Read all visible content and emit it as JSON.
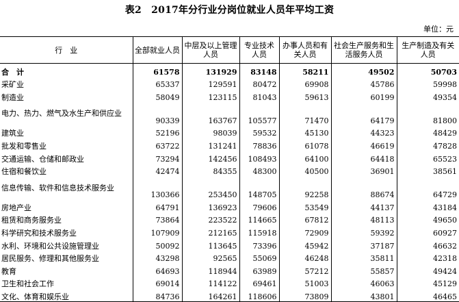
{
  "title": "表2　2017年分行业分岗位就业人员年平均工资",
  "unit": "单位：元",
  "table": {
    "headers": [
      "行　业",
      "全部就业人员",
      "中层及以上管理人员",
      "专业技术人员",
      "办事人员和有关人员",
      "社会生产服务和生活服务人员",
      "生产制造及有关人员"
    ],
    "rows": [
      [
        "合　计",
        "61578",
        "131929",
        "83148",
        "58211",
        "49502",
        "50703"
      ],
      [
        "采矿业",
        "65337",
        "129591",
        "80472",
        "69908",
        "45786",
        "59998"
      ],
      [
        "制造业",
        "58049",
        "123115",
        "81043",
        "59613",
        "60199",
        "49354"
      ],
      [
        "电力、热力、燃气及水生产和供应业",
        "90339",
        "163767",
        "105577",
        "71470",
        "64179",
        "81800"
      ],
      [
        "建筑业",
        "52196",
        "98039",
        "59532",
        "45130",
        "44323",
        "48429"
      ],
      [
        "批发和零售业",
        "63722",
        "131241",
        "78836",
        "61078",
        "46619",
        "47828"
      ],
      [
        "交通运输、仓储和邮政业",
        "73294",
        "142456",
        "108493",
        "64100",
        "64418",
        "65523"
      ],
      [
        "住宿和餐饮业",
        "42474",
        "84355",
        "48300",
        "40500",
        "36901",
        "38561"
      ],
      [
        "信息传输、软件和信息技术服务业",
        "130366",
        "253450",
        "148705",
        "92258",
        "88674",
        "64729"
      ],
      [
        "房地产业",
        "64791",
        "136923",
        "79606",
        "53549",
        "44137",
        "43184"
      ],
      [
        "租赁和商务服务业",
        "73864",
        "223522",
        "114665",
        "67812",
        "48113",
        "49650"
      ],
      [
        "科学研究和技术服务业",
        "107909",
        "212165",
        "115918",
        "72909",
        "59392",
        "60927"
      ],
      [
        "水利、环境和公共设施管理业",
        "50092",
        "113645",
        "73396",
        "45942",
        "37187",
        "46632"
      ],
      [
        "居民服务、修理和其他服务业",
        "43298",
        "92565",
        "55069",
        "46248",
        "35811",
        "42318"
      ],
      [
        "教育",
        "64693",
        "118944",
        "63989",
        "57212",
        "55857",
        "49424"
      ],
      [
        "卫生和社会工作",
        "69014",
        "114122",
        "69461",
        "51003",
        "46063",
        "45129"
      ],
      [
        "文化、体育和娱乐业",
        "84736",
        "164261",
        "118606",
        "73809",
        "43801",
        "46465"
      ]
    ]
  }
}
